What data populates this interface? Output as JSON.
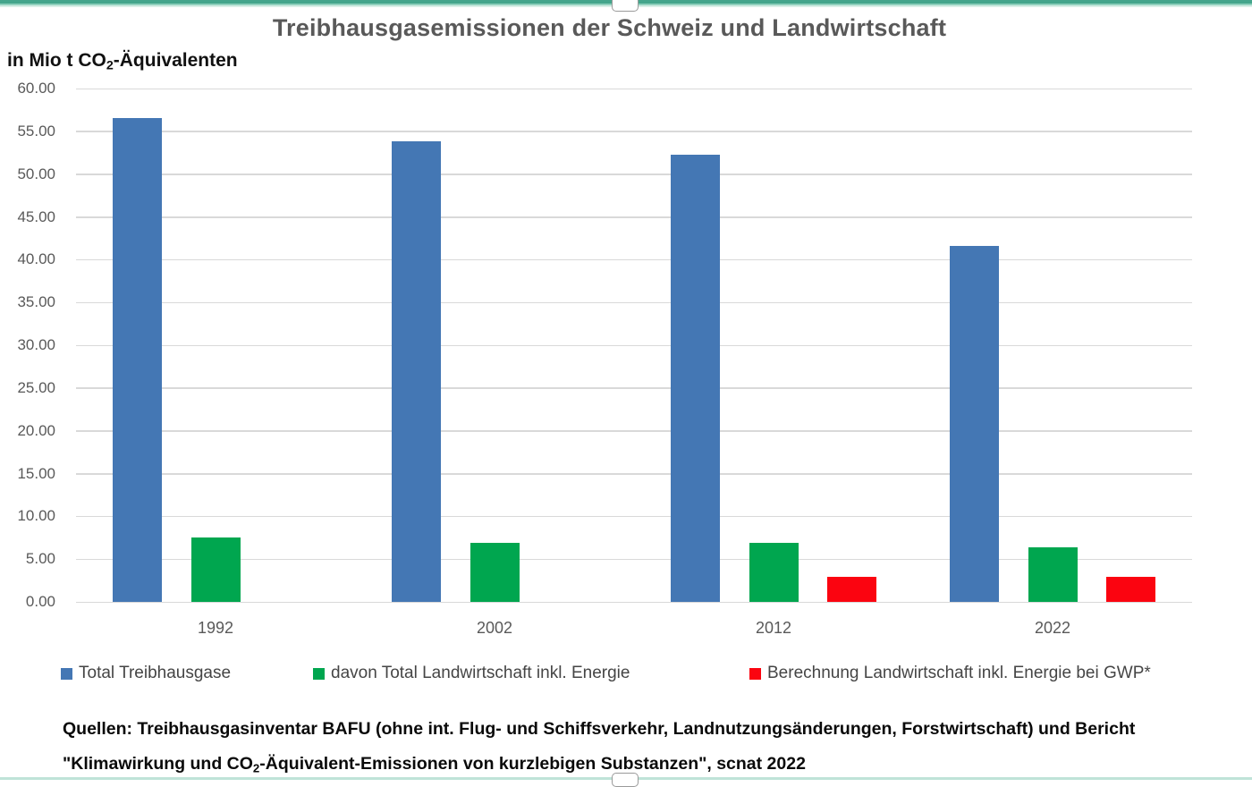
{
  "selection": {
    "band_color": "#44a58c",
    "band_color_light": "#bfe3d8"
  },
  "chart": {
    "title": "Treibhausgasemissionen der Schweiz und Landwirtschaft",
    "subtitle": {
      "pre": "in Mio t CO",
      "sub": "2",
      "post": "-Äquivalenten"
    }
  },
  "chart_data": {
    "type": "bar",
    "title": "Treibhausgasemissionen der Schweiz und Landwirtschaft",
    "unit": "Mio t CO2-Äquivalente",
    "categories": [
      "1992",
      "2002",
      "2012",
      "2022"
    ],
    "series": [
      {
        "name": "Total Treibhausgase",
        "color": "#4477b4",
        "values": [
          56.6,
          53.8,
          52.3,
          41.6
        ]
      },
      {
        "name": "davon Total Landwirtschaft inkl. Energie",
        "color": "#00a64f",
        "values": [
          7.5,
          6.9,
          6.9,
          6.4
        ]
      },
      {
        "name": "Berechnung Landwirtschaft inkl. Energie bei GWP*",
        "color": "#fb0410",
        "values": [
          null,
          null,
          2.9,
          2.9
        ]
      }
    ],
    "ylim": [
      0,
      60
    ],
    "ytick_step": 5,
    "ytick_decimals": 2,
    "grid": true,
    "legend_position": "bottom"
  },
  "source": {
    "line1": "Quellen: Treibhausgasinventar BAFU (ohne int. Flug- und Schiffsverkehr, Landnutzungsänderungen, Forstwirtschaft) und Bericht",
    "line2": {
      "pre": "\"Klimawirkung und CO",
      "sub": "2",
      "post": "-Äquivalent-Emissionen von kurzlebigen Substanzen\", scnat 2022"
    }
  }
}
